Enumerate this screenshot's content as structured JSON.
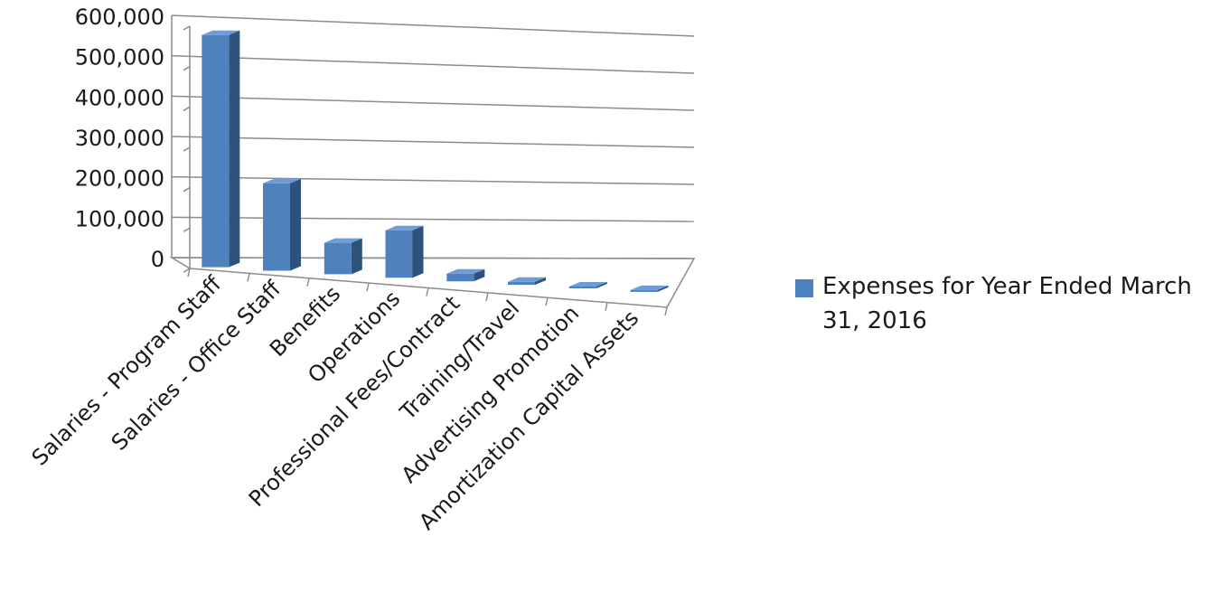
{
  "chart_data": {
    "type": "bar",
    "variant": "3d-column",
    "categories": [
      "Salaries - Program Staff",
      "Salaries - Office Staff",
      "Benefits",
      "Operations",
      "Professional Fees/Contract",
      "Training/Travel",
      "Advertising Promotion",
      "Amortization Capital Assets"
    ],
    "series": [
      {
        "name": "Expenses for Year Ended March 31, 2016",
        "color": "#4f81bd",
        "values": [
          578000,
          220000,
          80000,
          122000,
          20000,
          8000,
          2000,
          1500
        ]
      }
    ],
    "y_ticks": [
      "0",
      "100,000",
      "200,000",
      "300,000",
      "400,000",
      "500,000",
      "600,000"
    ],
    "ylim": [
      0,
      600000
    ],
    "grid": true,
    "legend_position": "right",
    "title": "",
    "xlabel": "",
    "ylabel": ""
  }
}
